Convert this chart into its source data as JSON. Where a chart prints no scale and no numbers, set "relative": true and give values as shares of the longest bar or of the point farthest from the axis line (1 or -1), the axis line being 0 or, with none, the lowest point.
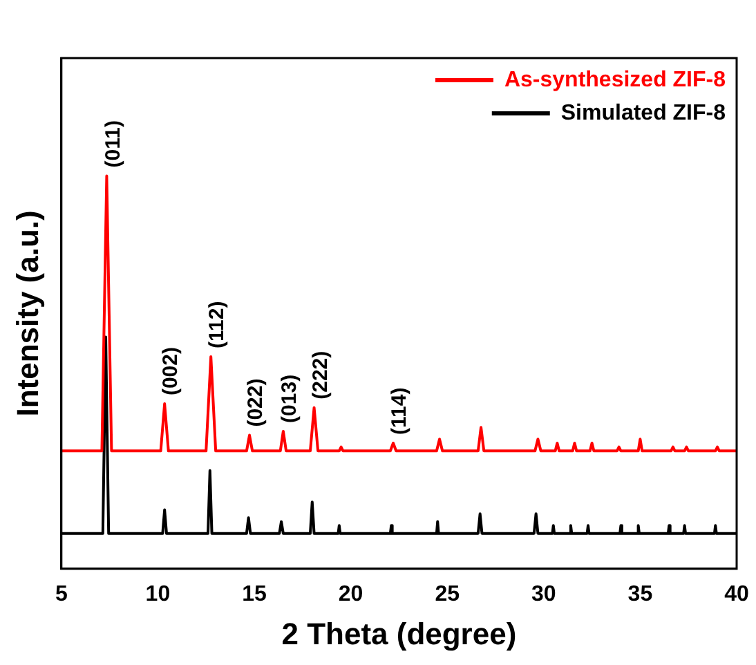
{
  "chart_data": {
    "type": "line",
    "relative": true,
    "xlabel": "2 Theta (degree)",
    "ylabel": "Intensity (a.u.)",
    "xlim": [
      5,
      40
    ],
    "xticks": [
      5,
      10,
      15,
      20,
      25,
      30,
      35,
      40
    ],
    "tick_labels": "x",
    "grid": false,
    "legend": "top right",
    "marker": "none",
    "line_style": "solid",
    "series": [
      {
        "name": "As-synthesized ZIF-8",
        "color": "#ff0000",
        "x": [
          5,
          7.1,
          7.35,
          7.6,
          10.15,
          10.35,
          10.55,
          12.5,
          12.75,
          13.0,
          14.6,
          14.75,
          14.9,
          16.35,
          16.5,
          16.65,
          17.9,
          18.1,
          18.3,
          19.4,
          19.5,
          19.6,
          22.05,
          22.2,
          22.35,
          24.45,
          24.6,
          24.75,
          26.6,
          26.75,
          26.9,
          29.55,
          29.7,
          29.85,
          30.6,
          30.7,
          30.8,
          31.5,
          31.6,
          31.7,
          32.4,
          32.5,
          32.6,
          33.8,
          33.9,
          34.0,
          34.9,
          35.0,
          35.1,
          36.6,
          36.7,
          36.8,
          37.3,
          37.4,
          37.5,
          38.9,
          39.0,
          39.1,
          40
        ],
        "values": [
          0.3,
          0.3,
          1.0,
          0.3,
          0.3,
          0.42,
          0.3,
          0.3,
          0.54,
          0.3,
          0.3,
          0.34,
          0.3,
          0.3,
          0.35,
          0.3,
          0.3,
          0.41,
          0.3,
          0.3,
          0.31,
          0.3,
          0.3,
          0.32,
          0.3,
          0.3,
          0.33,
          0.3,
          0.3,
          0.36,
          0.3,
          0.3,
          0.33,
          0.3,
          0.3,
          0.32,
          0.3,
          0.3,
          0.32,
          0.3,
          0.3,
          0.32,
          0.3,
          0.3,
          0.31,
          0.3,
          0.3,
          0.33,
          0.3,
          0.3,
          0.31,
          0.3,
          0.3,
          0.31,
          0.3,
          0.3,
          0.31,
          0.3,
          0.3
        ]
      },
      {
        "name": "Simulated ZIF-8",
        "color": "#000000",
        "x": [
          5,
          7.15,
          7.3,
          7.45,
          10.25,
          10.35,
          10.45,
          12.6,
          12.7,
          12.8,
          14.6,
          14.7,
          14.8,
          16.3,
          16.4,
          16.5,
          17.9,
          18.0,
          18.1,
          19.35,
          19.4,
          19.45,
          22.05,
          22.1,
          22.15,
          24.45,
          24.5,
          24.55,
          26.6,
          26.7,
          26.8,
          29.5,
          29.6,
          29.7,
          30.45,
          30.5,
          30.55,
          31.35,
          31.4,
          31.45,
          32.25,
          32.3,
          32.35,
          33.95,
          34.0,
          34.05,
          34.85,
          34.9,
          34.95,
          36.45,
          36.5,
          36.55,
          37.25,
          37.3,
          37.35,
          38.85,
          38.9,
          38.95,
          40
        ],
        "values": [
          0.09,
          0.09,
          0.59,
          0.09,
          0.09,
          0.15,
          0.09,
          0.09,
          0.25,
          0.09,
          0.09,
          0.13,
          0.09,
          0.09,
          0.12,
          0.09,
          0.09,
          0.17,
          0.09,
          0.09,
          0.11,
          0.09,
          0.09,
          0.11,
          0.09,
          0.09,
          0.12,
          0.09,
          0.09,
          0.14,
          0.09,
          0.09,
          0.14,
          0.09,
          0.09,
          0.11,
          0.09,
          0.09,
          0.11,
          0.09,
          0.09,
          0.11,
          0.09,
          0.09,
          0.11,
          0.09,
          0.09,
          0.11,
          0.09,
          0.09,
          0.11,
          0.09,
          0.09,
          0.11,
          0.09,
          0.09,
          0.11,
          0.09,
          0.09
        ]
      }
    ],
    "annotations": [
      {
        "text": "(011)",
        "x": 7.35,
        "y": 1.0
      },
      {
        "text": "(002)",
        "x": 10.35,
        "y": 0.42
      },
      {
        "text": "(112)",
        "x": 12.75,
        "y": 0.54
      },
      {
        "text": "(022)",
        "x": 14.75,
        "y": 0.34
      },
      {
        "text": "(013)",
        "x": 16.5,
        "y": 0.35
      },
      {
        "text": "(222)",
        "x": 18.1,
        "y": 0.41
      },
      {
        "text": "(114)",
        "x": 22.2,
        "y": 0.32
      }
    ]
  }
}
